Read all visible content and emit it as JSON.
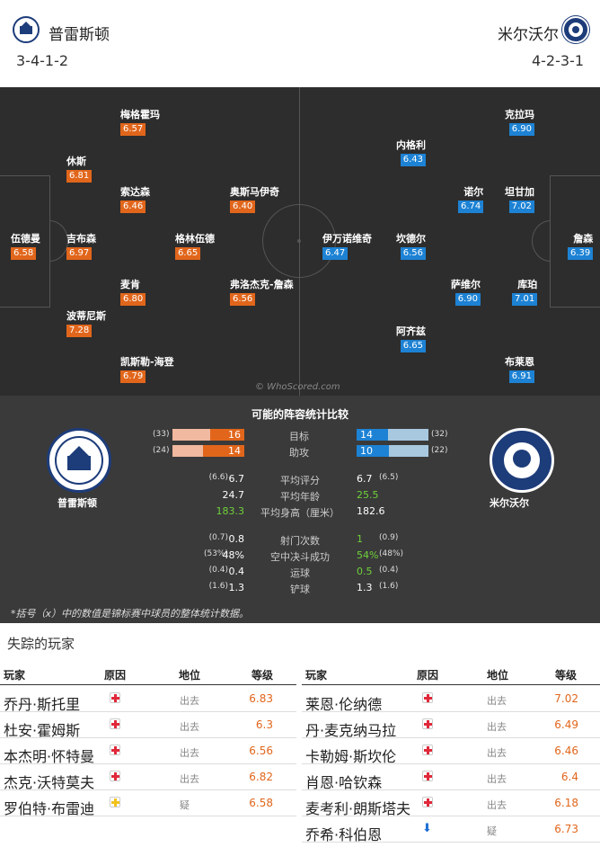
{
  "home": {
    "name": "普雷斯顿",
    "formation": "3-4-1-2",
    "crest_color": "#1d3c7a"
  },
  "away": {
    "name": "米尔沃尔",
    "formation": "4-2-3-1",
    "crest_color": "#1d3c7a"
  },
  "pitch": {
    "credit": "© WhoScored.com",
    "home_players": [
      {
        "name": "伍德曼",
        "rating": "6.58"
      },
      {
        "name": "休斯",
        "rating": "6.81"
      },
      {
        "name": "吉布森",
        "rating": "6.97"
      },
      {
        "name": "波蒂尼斯",
        "rating": "7.28"
      },
      {
        "name": "梅格霍玛",
        "rating": "6.57"
      },
      {
        "name": "索达森",
        "rating": "6.46"
      },
      {
        "name": "麦肯",
        "rating": "6.80"
      },
      {
        "name": "凯斯勒-海登",
        "rating": "6.79"
      },
      {
        "name": "格林伍德",
        "rating": "6.65"
      },
      {
        "name": "奥斯马伊奇",
        "rating": "6.40"
      },
      {
        "name": "弗洛杰克-詹森",
        "rating": "6.56"
      }
    ],
    "away_players": [
      {
        "name": "伊万诺维奇",
        "rating": "6.47"
      },
      {
        "name": "内格利",
        "rating": "6.43"
      },
      {
        "name": "坎德尔",
        "rating": "6.56"
      },
      {
        "name": "阿齐兹",
        "rating": "6.65"
      },
      {
        "name": "诺尔",
        "rating": "6.74"
      },
      {
        "name": "萨维尔",
        "rating": "6.90"
      },
      {
        "name": "克拉玛",
        "rating": "6.90"
      },
      {
        "name": "坦甘加",
        "rating": "7.02"
      },
      {
        "name": "库珀",
        "rating": "7.01"
      },
      {
        "name": "布莱恩",
        "rating": "6.91"
      },
      {
        "name": "詹森",
        "rating": "6.39"
      }
    ]
  },
  "comparison": {
    "title": "可能的阵容统计比较",
    "home_name": "普雷斯顿",
    "away_name": "米尔沃尔",
    "bars": [
      {
        "label": "目标",
        "home": "16",
        "home_total": "(33)",
        "away": "14",
        "away_total": "(32)",
        "home_frac": 0.48,
        "away_frac": 0.44
      },
      {
        "label": "助攻",
        "home": "14",
        "home_total": "(24)",
        "away": "10",
        "away_total": "(22)",
        "home_frac": 0.58,
        "away_frac": 0.45
      }
    ],
    "stats1": [
      {
        "label": "平均评分",
        "home_small": "(6.6)",
        "home": "6.7",
        "away": "6.7",
        "away_small": "(6.5)",
        "home_green": false,
        "away_green": false
      },
      {
        "label": "平均年龄",
        "home_small": "",
        "home": "24.7",
        "away": "25.5",
        "away_small": "",
        "home_green": false,
        "away_green": true
      },
      {
        "label": "平均身高（厘米）",
        "home_small": "",
        "home": "183.3",
        "away": "182.6",
        "away_small": "",
        "home_green": true,
        "away_green": false
      }
    ],
    "stats2": [
      {
        "label": "射门次数",
        "home_small": "(0.7)",
        "home": "0.8",
        "away": "1",
        "away_small": "(0.9)",
        "home_green": false,
        "away_green": true
      },
      {
        "label": "空中决斗成功",
        "home_small": "(53%)",
        "home": "48%",
        "away": "54%",
        "away_small": "(48%)",
        "home_green": false,
        "away_green": true
      },
      {
        "label": "运球",
        "home_small": "(0.4)",
        "home": "0.4",
        "away": "0.5",
        "away_small": "(0.4)",
        "home_green": false,
        "away_green": true
      },
      {
        "label": "铲球",
        "home_small": "(1.6)",
        "home": "1.3",
        "away": "1.3",
        "away_small": "(1.6)",
        "home_green": false,
        "away_green": false
      }
    ],
    "note": "*括号（x）中的数值是锦标赛中球员的整体统计数据。"
  },
  "missing": {
    "title": "失踪的玩家",
    "headers": {
      "player": "玩家",
      "reason": "原因",
      "position": "地位",
      "rating": "等级"
    },
    "home": [
      {
        "player": "乔丹·斯托里",
        "reason": "injury",
        "position": "出去",
        "rating": "6.83"
      },
      {
        "player": "杜安·霍姆斯",
        "reason": "injury",
        "position": "出去",
        "rating": "6.3"
      },
      {
        "player": "本杰明·怀特曼",
        "reason": "injury",
        "position": "出去",
        "rating": "6.56"
      },
      {
        "player": "杰克·沃特莫夫",
        "reason": "injury",
        "position": "出去",
        "rating": "6.82"
      },
      {
        "player": "罗伯特·布雷迪",
        "reason": "doubt",
        "position": "疑",
        "rating": "6.58"
      }
    ],
    "away": [
      {
        "player": "莱恩·伦纳德",
        "reason": "injury",
        "position": "出去",
        "rating": "7.02"
      },
      {
        "player": "丹·麦克纳马拉",
        "reason": "injury",
        "position": "出去",
        "rating": "6.49"
      },
      {
        "player": "卡勒姆·斯坎伦",
        "reason": "injury",
        "position": "出去",
        "rating": "6.46"
      },
      {
        "player": "肖恩·哈钦森",
        "reason": "injury",
        "position": "出去",
        "rating": "6.4"
      },
      {
        "player": "麦考利·朗斯塔夫",
        "reason": "injury",
        "position": "出去",
        "rating": "6.18"
      },
      {
        "player": "乔希·科伯恩",
        "reason": "other",
        "position": "疑",
        "rating": "6.73"
      }
    ]
  }
}
